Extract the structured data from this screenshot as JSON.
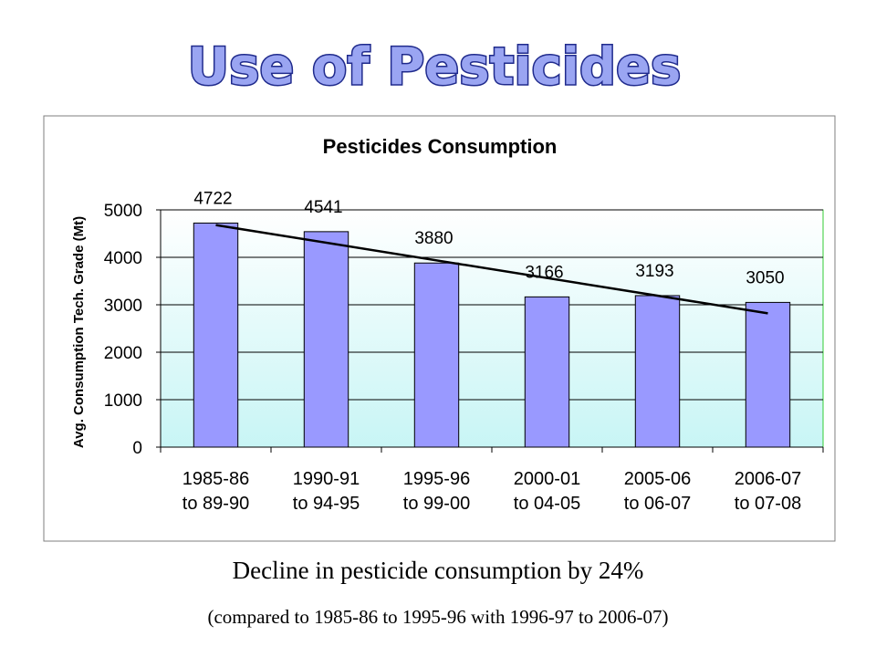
{
  "slide": {
    "title": "Use of Pesticides",
    "caption": "Decline in pesticide consumption by 24%",
    "subcaption": "(compared to 1985-86 to 1995-96  with 1996-97 to 2006-07)"
  },
  "colors": {
    "title_fill": "#9aa5f2",
    "title_outline": "#1f2a8c",
    "bar_fill": "#9999ff",
    "plot_bg_top": "#ffffff",
    "plot_bg_bottom": "#c8f5f5",
    "trendline": "#000000"
  },
  "chart_data": {
    "type": "bar",
    "title": "Pesticides Consumption",
    "ylabel": "Avg. Consumption Tech. Grade (Mt)",
    "xlabel": "",
    "categories": [
      [
        "1985-86",
        "to 89-90"
      ],
      [
        "1990-91",
        "to 94-95"
      ],
      [
        "1995-96",
        "to 99-00"
      ],
      [
        "2000-01",
        "to 04-05"
      ],
      [
        "2005-06",
        "to 06-07"
      ],
      [
        "2006-07",
        "to 07-08"
      ]
    ],
    "series": [
      {
        "values": [
          4722,
          4541,
          3880,
          3166,
          3193,
          3050
        ]
      }
    ],
    "data_labels": [
      "4722",
      "4541",
      "3880",
      "3166",
      "3193",
      "3050"
    ],
    "yticks": [
      0,
      1000,
      2000,
      3000,
      4000,
      5000
    ],
    "ylim": [
      0,
      5000
    ],
    "grid": true,
    "legend": "none",
    "trendline": {
      "type": "linear",
      "start": 4680,
      "end": 2820
    }
  }
}
